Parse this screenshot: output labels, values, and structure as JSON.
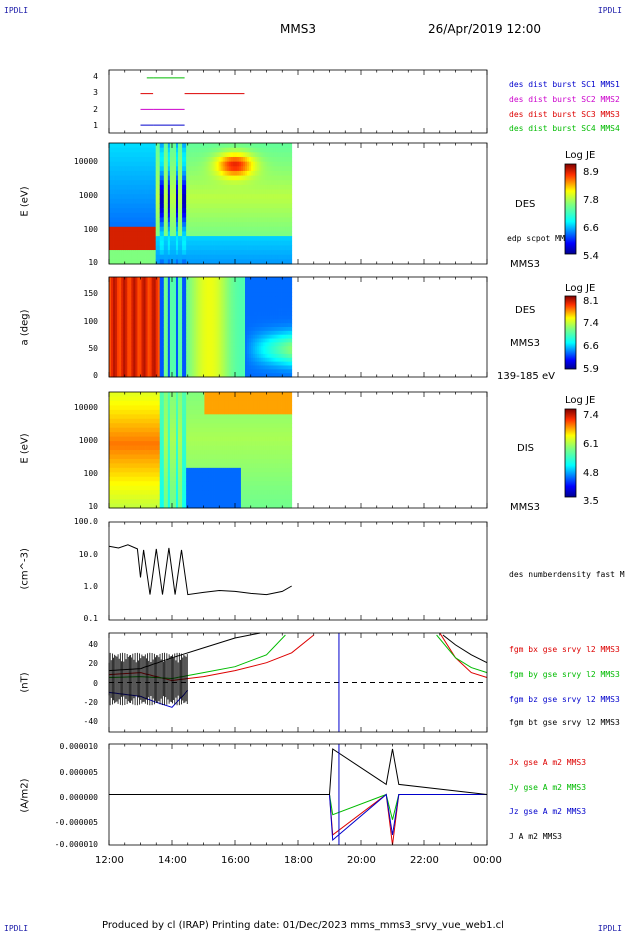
{
  "corners": {
    "tl": "IPDLI",
    "tr": "IPDLI",
    "bl": "IPDLI",
    "br": "IPDLI"
  },
  "header": {
    "mission": "MMS3",
    "datetime": "26/Apr/2019 12:00"
  },
  "footer": {
    "text": "Produced by cl (IRAP)   Printing date: 01/Dec/2023   mms_mms3_srvy_vue_web1.cl"
  },
  "time_axis": {
    "ticks": [
      "12:00",
      "14:00",
      "16:00",
      "18:00",
      "20:00",
      "22:00",
      "00:00"
    ],
    "range_hours": [
      12,
      24
    ]
  },
  "colors": {
    "blue": "#0000cc",
    "magenta": "#cc00cc",
    "red": "#dd0000",
    "green": "#00bb00",
    "black": "#000000"
  },
  "panels": {
    "bursts": {
      "yticks": [
        "4",
        "3",
        "2",
        "1"
      ],
      "legend": [
        {
          "text": "des dist burst SC1 MMS1",
          "color": "#0000cc"
        },
        {
          "text": "des dist burst SC2 MMS2",
          "color": "#cc00cc"
        },
        {
          "text": "des dist burst SC3 MMS3",
          "color": "#dd0000"
        },
        {
          "text": "des dist burst SC4 MMS4",
          "color": "#00bb00"
        }
      ]
    },
    "des_energy": {
      "ylabel": "E (eV)",
      "yticks": [
        "10000",
        "1000",
        "100",
        "10"
      ],
      "right_labels": [
        "DES",
        "edp scpot MMS3",
        "MMS3"
      ],
      "colorbar": {
        "title": "Log JE",
        "ticks": [
          "8.9",
          "7.8",
          "6.6",
          "5.4"
        ]
      }
    },
    "des_pitch": {
      "ylabel": "a (deg)",
      "yticks": [
        "150",
        "100",
        "50",
        "0"
      ],
      "right_labels": [
        "DES",
        "MMS3",
        "139-185 eV"
      ],
      "colorbar": {
        "title": "Log JE",
        "ticks": [
          "8.1",
          "7.4",
          "6.6",
          "5.9"
        ]
      }
    },
    "dis_energy": {
      "ylabel": "E (eV)",
      "yticks": [
        "10000",
        "1000",
        "100",
        "10"
      ],
      "right_labels": [
        "DIS",
        "MMS3"
      ],
      "colorbar": {
        "title": "Log JE",
        "ticks": [
          "7.4",
          "6.1",
          "4.8",
          "3.5"
        ]
      }
    },
    "density": {
      "ylabel": "(cm^-3)",
      "yticks": [
        "100.0",
        "10.0",
        "1.0",
        "0.1"
      ],
      "legend": [
        {
          "text": "des numberdensity fast M",
          "color": "#000000"
        }
      ]
    },
    "bfield": {
      "ylabel": "(nT)",
      "yticks": [
        "40",
        "20",
        "0",
        "-20",
        "-40"
      ],
      "legend": [
        {
          "text": "fgm bx gse srvy l2 MMS3",
          "color": "#dd0000"
        },
        {
          "text": "fgm by gse srvy l2 MMS3",
          "color": "#00bb00"
        },
        {
          "text": "fgm bz gse srvy l2 MMS3",
          "color": "#0000cc"
        },
        {
          "text": "fgm bt gse srvy l2 MMS3",
          "color": "#000000"
        }
      ]
    },
    "current": {
      "ylabel": "(A/m2)",
      "yticks": [
        "0.000010",
        "0.000005",
        "0.000000",
        "-0.000005",
        "-0.000010"
      ],
      "legend": [
        {
          "text": "Jx gse A m2 MMS3",
          "color": "#dd0000"
        },
        {
          "text": "Jy gse A m2 MMS3",
          "color": "#00bb00"
        },
        {
          "text": "Jz gse A m2 MMS3",
          "color": "#0000cc"
        },
        {
          "text": "J A m2 MMS3",
          "color": "#000000"
        }
      ]
    }
  },
  "chart_data": [
    {
      "type": "line",
      "title": "",
      "xlabel": "",
      "ylabel": "",
      "series": [
        {
          "name": "des dist burst SC4 MMS4",
          "x": [
            13.2,
            13.3,
            13.4,
            14.4
          ],
          "values": [
            4,
            4,
            4,
            4
          ]
        },
        {
          "name": "des dist burst SC3 MMS3",
          "x": [
            13.0,
            13.4,
            14.4,
            16.3
          ],
          "values": [
            3,
            3,
            3,
            3
          ]
        },
        {
          "name": "des dist burst SC2 MMS2",
          "x": [
            13.0,
            13.4,
            14.4
          ],
          "values": [
            2,
            2,
            2
          ]
        },
        {
          "name": "des dist burst SC1 MMS1",
          "x": [
            13.0,
            13.4,
            14.4
          ],
          "values": [
            1,
            1,
            1
          ]
        }
      ],
      "ylim": [
        0.5,
        4.5
      ]
    },
    {
      "type": "heatmap",
      "title": "",
      "xlabel": "",
      "ylabel": "E (eV)",
      "ylim": [
        10,
        30000
      ],
      "yscale": "log",
      "data_until_hour": 17.8,
      "colorbar_range": [
        5.4,
        8.9
      ]
    },
    {
      "type": "heatmap",
      "title": "",
      "xlabel": "",
      "ylabel": "a (deg)",
      "ylim": [
        0,
        180
      ],
      "data_until_hour": 17.8,
      "colorbar_range": [
        5.9,
        8.1
      ]
    },
    {
      "type": "heatmap",
      "title": "",
      "xlabel": "",
      "ylabel": "E (eV)",
      "ylim": [
        10,
        30000
      ],
      "yscale": "log",
      "data_until_hour": 17.8,
      "colorbar_range": [
        3.5,
        7.4
      ]
    },
    {
      "type": "line",
      "title": "",
      "xlabel": "",
      "ylabel": "(cm^-3)",
      "yscale": "log",
      "ylim": [
        0.1,
        100
      ],
      "series": [
        {
          "name": "des numberdensity fast M",
          "x": [
            12.0,
            12.3,
            12.6,
            12.9,
            13.0,
            13.1,
            13.3,
            13.5,
            13.7,
            13.9,
            14.1,
            14.3,
            14.5,
            15.0,
            15.5,
            16.0,
            16.5,
            17.0,
            17.5,
            17.8
          ],
          "values": [
            18,
            16,
            20,
            15,
            2,
            14,
            0.6,
            15,
            0.6,
            16,
            0.6,
            14,
            0.6,
            0.7,
            0.8,
            0.75,
            0.65,
            0.6,
            0.75,
            1.1
          ]
        }
      ]
    },
    {
      "type": "line",
      "title": "",
      "xlabel": "",
      "ylabel": "(nT)",
      "ylim": [
        -50,
        50
      ],
      "series": [
        {
          "name": "fgm bt gse srvy l2 MMS3",
          "x": [
            12.0,
            13.0,
            14.0,
            15.0,
            16.0,
            16.8,
            22.6,
            23.0,
            23.5,
            24.0
          ],
          "values": [
            12,
            14,
            25,
            35,
            45,
            50,
            48,
            38,
            28,
            20
          ]
        },
        {
          "name": "fgm bx gse srvy l2 MMS3",
          "x": [
            12.0,
            13.0,
            14.0,
            15.0,
            16.0,
            17.0,
            17.8,
            18.5,
            22.5,
            23.0,
            23.5,
            24.0
          ],
          "values": [
            8,
            10,
            2,
            6,
            12,
            20,
            30,
            48,
            50,
            25,
            10,
            5
          ]
        },
        {
          "name": "fgm by gse srvy l2 MMS3",
          "x": [
            12.0,
            13.0,
            14.0,
            15.0,
            16.0,
            17.0,
            17.6,
            22.4,
            23.0,
            23.5,
            24.0
          ],
          "values": [
            5,
            6,
            4,
            10,
            16,
            28,
            48,
            48,
            25,
            15,
            10
          ]
        },
        {
          "name": "fgm bz gse srvy l2 MMS3",
          "x": [
            12.0,
            12.5,
            13.0,
            13.5,
            14.0,
            14.5
          ],
          "values": [
            -10,
            -12,
            -14,
            -20,
            -25,
            -8
          ]
        }
      ]
    },
    {
      "type": "line",
      "title": "",
      "xlabel": "",
      "ylabel": "(A/m2)",
      "ylim": [
        -1e-05,
        1e-05
      ],
      "series": [
        {
          "name": "Jx gse A m2 MMS3",
          "x": [
            12,
            19.0,
            19.1,
            20.8,
            21.0,
            21.2,
            24
          ],
          "values": [
            0,
            0,
            -8e-06,
            0,
            -1e-05,
            0,
            0
          ]
        },
        {
          "name": "Jy gse A m2 MMS3",
          "x": [
            12,
            19.0,
            19.1,
            20.8,
            21.0,
            21.2,
            24
          ],
          "values": [
            0,
            0,
            -4e-06,
            0,
            -5e-06,
            0,
            0
          ]
        },
        {
          "name": "Jz gse A m2 MMS3",
          "x": [
            12,
            19.0,
            19.1,
            20.8,
            21.0,
            21.2,
            24
          ],
          "values": [
            0,
            0,
            -9e-06,
            0,
            -8e-06,
            0,
            0
          ]
        },
        {
          "name": "J A m2 MMS3",
          "x": [
            12,
            19.0,
            19.1,
            20.8,
            21.0,
            21.2,
            24
          ],
          "values": [
            0,
            0,
            9e-06,
            2e-06,
            9e-06,
            2e-06,
            0
          ]
        }
      ]
    }
  ]
}
